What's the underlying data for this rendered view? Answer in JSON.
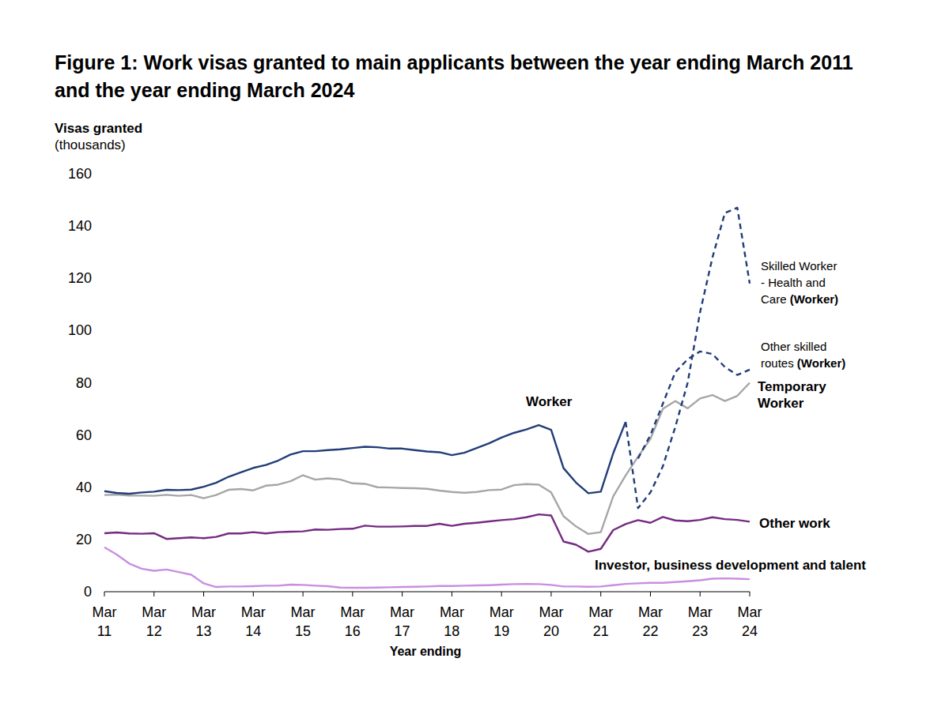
{
  "chart_data": {
    "type": "line",
    "title": "Figure 1: Work visas granted to main applicants between the year ending March 2011 and the year ending March 2024",
    "ylabel": "Visas granted",
    "ylabel_note": "(thousands)",
    "xlabel": "Year ending",
    "categories": [
      "Mar 11",
      null,
      null,
      null,
      "Mar 12",
      null,
      null,
      null,
      "Mar 13",
      null,
      null,
      null,
      "Mar 14",
      null,
      null,
      null,
      "Mar 15",
      null,
      null,
      null,
      "Mar 16",
      null,
      null,
      null,
      "Mar 17",
      null,
      null,
      null,
      "Mar 18",
      null,
      null,
      null,
      "Mar 19",
      null,
      null,
      null,
      "Mar 20",
      null,
      null,
      null,
      "Mar 21",
      null,
      null,
      null,
      "Mar 22",
      null,
      null,
      null,
      "Mar 23",
      null,
      null,
      null,
      "Mar 24"
    ],
    "ylim": [
      0,
      160
    ],
    "yticks": [
      0,
      20,
      40,
      60,
      80,
      100,
      120,
      140,
      160
    ],
    "grid": false,
    "series": [
      {
        "name": "Worker",
        "color": "#213d78",
        "line_style": "solid",
        "values": [
          38.5,
          37.8,
          37.5,
          38,
          38.3,
          39,
          38.9,
          39.1,
          40.2,
          41.7,
          44,
          45.7,
          47.4,
          48.5,
          50.2,
          52.5,
          53.8,
          53.8,
          54.2,
          54.5,
          55,
          55.5,
          55.3,
          54.8,
          54.8,
          54.2,
          53.7,
          53.4,
          52.3,
          53.2,
          55,
          56.8,
          59,
          60.8,
          62.1,
          63.8,
          62,
          47.3,
          41.8,
          37.7,
          38.3,
          53,
          65,
          null,
          null,
          null,
          null,
          null,
          null,
          null,
          null,
          null,
          null
        ]
      },
      {
        "name": "Skilled Worker - Health and Care (Worker)",
        "color": "#213d78",
        "line_style": "dashed",
        "values": [
          null,
          null,
          null,
          null,
          null,
          null,
          null,
          null,
          null,
          null,
          null,
          null,
          null,
          null,
          null,
          null,
          null,
          null,
          null,
          null,
          null,
          null,
          null,
          null,
          null,
          null,
          null,
          null,
          null,
          null,
          null,
          null,
          null,
          null,
          null,
          null,
          null,
          null,
          null,
          null,
          null,
          null,
          65,
          32,
          38,
          48,
          63,
          80,
          107,
          128,
          145,
          147,
          118
        ]
      },
      {
        "name": "Other skilled routes (Worker)",
        "color": "#213d78",
        "line_style": "dashed",
        "values": [
          null,
          null,
          null,
          null,
          null,
          null,
          null,
          null,
          null,
          null,
          null,
          null,
          null,
          null,
          null,
          null,
          null,
          null,
          null,
          null,
          null,
          null,
          null,
          null,
          null,
          null,
          null,
          null,
          null,
          null,
          null,
          null,
          null,
          null,
          null,
          null,
          null,
          null,
          null,
          null,
          null,
          null,
          null,
          51,
          60,
          72,
          84,
          89,
          92,
          91,
          86,
          83,
          85
        ]
      },
      {
        "name": "Temporary Worker",
        "color": "#a6a6a6",
        "line_style": "solid",
        "values": [
          37,
          37.2,
          36.8,
          36.8,
          36.7,
          37.1,
          36.7,
          37,
          35.8,
          37,
          39,
          39.3,
          38.8,
          40.6,
          41,
          42.3,
          44.6,
          42.9,
          43.4,
          43,
          41.5,
          41.3,
          40,
          39.9,
          39.7,
          39.6,
          39.4,
          38.7,
          38.2,
          37.9,
          38.2,
          38.9,
          39.1,
          40.8,
          41.2,
          41,
          38,
          28.9,
          25,
          22.1,
          22.8,
          36.5,
          44.5,
          51.7,
          58.5,
          70,
          73,
          70.2,
          74,
          75.3,
          73,
          75,
          80
        ]
      },
      {
        "name": "Other work",
        "color": "#762a83",
        "line_style": "solid",
        "values": [
          22.4,
          22.7,
          22.3,
          22.2,
          22.4,
          20.2,
          20.5,
          20.8,
          20.5,
          21,
          22.3,
          22.3,
          22.8,
          22.3,
          22.8,
          23,
          23.1,
          23.8,
          23.7,
          24,
          24.1,
          25.3,
          24.9,
          24.9,
          25,
          25.2,
          25.2,
          26,
          25.2,
          26,
          26.4,
          26.9,
          27.4,
          27.8,
          28.5,
          29.6,
          29.2,
          19.2,
          18,
          15.3,
          16.4,
          23.6,
          25.9,
          27.4,
          26.4,
          28.6,
          27.3,
          27,
          27.5,
          28.5,
          27.8,
          27.5,
          26.8
        ]
      },
      {
        "name": "Investor, business development and talent",
        "color": "#c98ee0",
        "line_style": "solid",
        "values": [
          17,
          14.2,
          10.8,
          8.8,
          8,
          8.5,
          7.5,
          6.5,
          3.2,
          1.8,
          2,
          2,
          2.1,
          2.3,
          2.3,
          2.7,
          2.6,
          2.3,
          2.1,
          1.6,
          1.5,
          1.5,
          1.6,
          1.7,
          1.8,
          1.9,
          2,
          2.2,
          2.2,
          2.3,
          2.4,
          2.5,
          2.7,
          2.9,
          3,
          2.9,
          2.6,
          2,
          2,
          1.9,
          2,
          2.5,
          3,
          3.2,
          3.4,
          3.4,
          3.7,
          4,
          4.4,
          5,
          5.1,
          5,
          4.8
        ]
      }
    ]
  }
}
